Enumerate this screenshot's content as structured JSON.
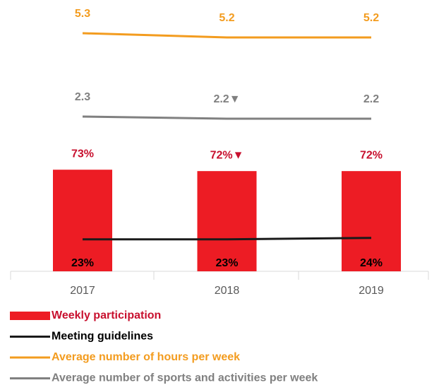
{
  "chart_data": {
    "type": "bar",
    "categories": [
      "2017",
      "2018",
      "2019"
    ],
    "series": [
      {
        "name": "Weekly participation",
        "type": "bar",
        "color": "#ed1c24",
        "label_color": "#c8102e",
        "values": [
          73,
          72,
          72
        ],
        "value_labels": [
          "73%",
          "72%▼",
          "72%"
        ]
      },
      {
        "name": "Meeting guidelines",
        "type": "line",
        "color": "#1a1a1a",
        "label_color": "#000000",
        "values": [
          23,
          23,
          24
        ],
        "value_labels": [
          "23%",
          "23%",
          "24%"
        ]
      },
      {
        "name": "Average number of hours per week",
        "type": "line",
        "color": "#f39c1f",
        "label_color": "#f39c1f",
        "values": [
          5.3,
          5.2,
          5.2
        ]
      },
      {
        "name": "Average number of sports and activities per week",
        "type": "line",
        "color": "#808080",
        "label_color": "#808080",
        "values": [
          2.3,
          2.2,
          2.2
        ],
        "value_labels": [
          "2.3",
          "2.2▼",
          "2.2"
        ]
      }
    ]
  }
}
